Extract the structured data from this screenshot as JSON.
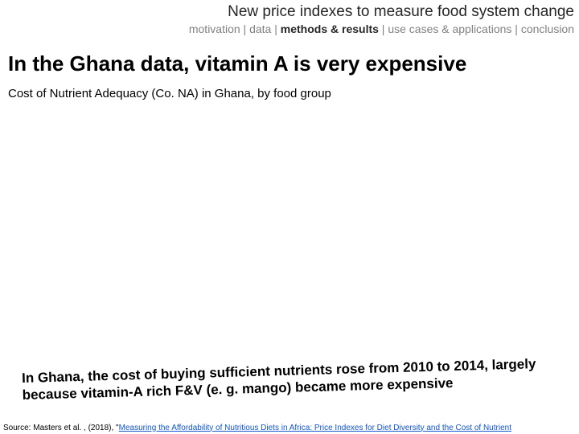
{
  "header": {
    "title": "New price indexes to measure food system change",
    "title_color": "#262626",
    "title_fontsize": 19
  },
  "breadcrumb": {
    "items": [
      {
        "label": "motivation",
        "active": false
      },
      {
        "label": "data",
        "active": false
      },
      {
        "label": "methods & results",
        "active": true
      },
      {
        "label": "use cases & applications",
        "active": false
      },
      {
        "label": "conclusion",
        "active": false
      }
    ],
    "separator": " | ",
    "inactive_color": "#808080",
    "active_color": "#262626",
    "fontsize": 14
  },
  "main_heading": {
    "text": "In the Ghana data, vitamin A is very expensive",
    "fontsize": 26,
    "fontweight": "bold",
    "color": "#000000"
  },
  "subtitle": {
    "text": "Cost of Nutrient Adequacy (Co. NA) in Ghana, by food group",
    "fontsize": 15,
    "color": "#000000"
  },
  "callout": {
    "text": "In Ghana, the cost of buying sufficient nutrients rose from 2010 to 2014, largely because vitamin-A rich F&V (e. g. mango) became more expensive",
    "fontsize": 17,
    "fontweight": "bold",
    "color": "#000000",
    "rotation_deg": -1.6
  },
  "source": {
    "prefix": "Source: Masters et al. , (2018), \"",
    "link_text": "Measuring the Affordability of Nutritious Diets in Africa: Price Indexes for Diet Diversity and the Cost of Nutrient",
    "link_color": "#1155cc",
    "fontsize": 10,
    "color": "#000000"
  },
  "background_color": "#ffffff",
  "slide_width": 720,
  "slide_height": 540
}
